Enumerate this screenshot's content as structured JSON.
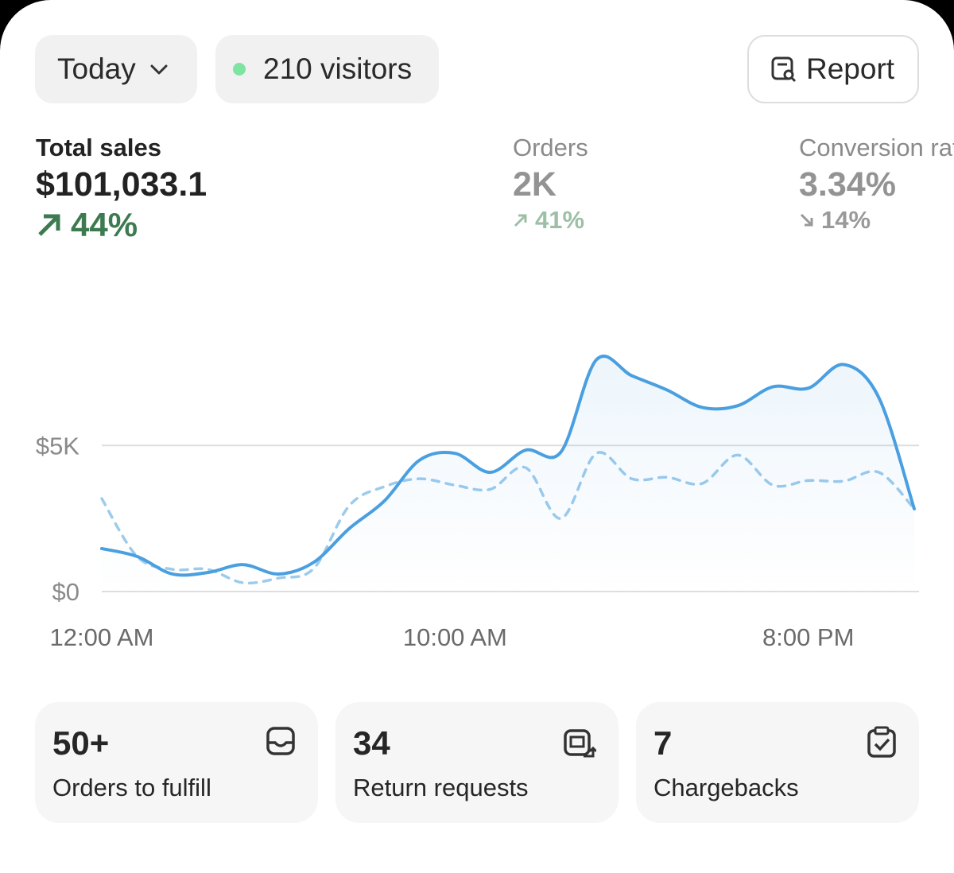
{
  "toolbar": {
    "date_filter": "Today",
    "visitors": "210 visitors",
    "report": "Report"
  },
  "metrics": [
    {
      "label": "Total sales",
      "value": "$101,033.1",
      "change": "44%"
    },
    {
      "label": "Orders",
      "value": "2K",
      "change": "41%"
    },
    {
      "label": "Conversion rate",
      "value": "3.34%",
      "change": "14%"
    }
  ],
  "chart_data": {
    "type": "line",
    "categories": [
      "12:00 AM",
      null,
      null,
      null,
      null,
      null,
      null,
      null,
      null,
      null,
      "10:00 AM",
      null,
      null,
      null,
      null,
      null,
      null,
      null,
      null,
      null,
      "8:00 PM",
      null,
      null,
      null
    ],
    "series": [
      {
        "color": "#4a9fe0",
        "style": "solid",
        "values": [
          1470,
          1200,
          600,
          650,
          920,
          600,
          1000,
          2150,
          3100,
          4500,
          4730,
          4080,
          4840,
          4780,
          7930,
          7390,
          6900,
          6300,
          6360,
          7010,
          6960,
          7770,
          6630,
          2830
        ]
      },
      {
        "color": "#9ccbec",
        "style": "dashed",
        "values": [
          3180,
          1200,
          760,
          760,
          300,
          460,
          790,
          2930,
          3590,
          3860,
          3640,
          3500,
          4240,
          2500,
          4730,
          3860,
          3910,
          3700,
          4670,
          3640,
          3800,
          3780,
          4080,
          2830
        ]
      }
    ],
    "ylim": [
      0,
      8000
    ],
    "yticks": [
      {
        "value": 0,
        "label": "$0"
      },
      {
        "value": 5000,
        "label": "$5K"
      }
    ],
    "grid": true
  },
  "cards": [
    {
      "value": "50+",
      "label": "Orders to fulfill"
    },
    {
      "value": "34",
      "label": "Return requests"
    },
    {
      "value": "7",
      "label": "Chargebacks"
    }
  ]
}
